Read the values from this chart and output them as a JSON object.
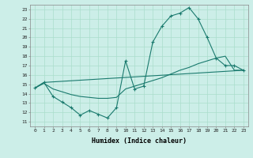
{
  "xlabel": "Humidex (Indice chaleur)",
  "bg_color": "#cceee8",
  "grid_color": "#aaddcc",
  "line_color": "#1a7a6e",
  "xlim": [
    -0.5,
    23.5
  ],
  "ylim": [
    10.5,
    23.5
  ],
  "xticks": [
    0,
    1,
    2,
    3,
    4,
    5,
    6,
    7,
    8,
    9,
    10,
    11,
    12,
    13,
    14,
    15,
    16,
    17,
    18,
    19,
    20,
    21,
    22,
    23
  ],
  "yticks": [
    11,
    12,
    13,
    14,
    15,
    16,
    17,
    18,
    19,
    20,
    21,
    22,
    23
  ],
  "line1_x": [
    0,
    1,
    2,
    3,
    4,
    5,
    6,
    7,
    8,
    9,
    10,
    11,
    12,
    13,
    14,
    15,
    16,
    17,
    18,
    19,
    20,
    21,
    22,
    23
  ],
  "line1_y": [
    14.6,
    15.2,
    13.7,
    13.1,
    12.5,
    11.7,
    12.2,
    11.8,
    11.4,
    12.5,
    17.5,
    14.5,
    14.8,
    19.5,
    21.2,
    22.3,
    22.6,
    23.2,
    22.0,
    20.0,
    17.8,
    17.0,
    17.0,
    16.5
  ],
  "line2_x": [
    0,
    1,
    2,
    3,
    4,
    5,
    6,
    7,
    8,
    9,
    10,
    11,
    12,
    13,
    14,
    15,
    16,
    17,
    18,
    19,
    20,
    21,
    22,
    23
  ],
  "line2_y": [
    14.6,
    15.1,
    14.5,
    14.2,
    13.9,
    13.7,
    13.6,
    13.5,
    13.5,
    13.6,
    14.5,
    14.8,
    15.1,
    15.4,
    15.7,
    16.1,
    16.5,
    16.8,
    17.2,
    17.5,
    17.8,
    18.0,
    16.5,
    16.5
  ],
  "line3_x": [
    0,
    1,
    23
  ],
  "line3_y": [
    14.6,
    15.2,
    16.5
  ]
}
